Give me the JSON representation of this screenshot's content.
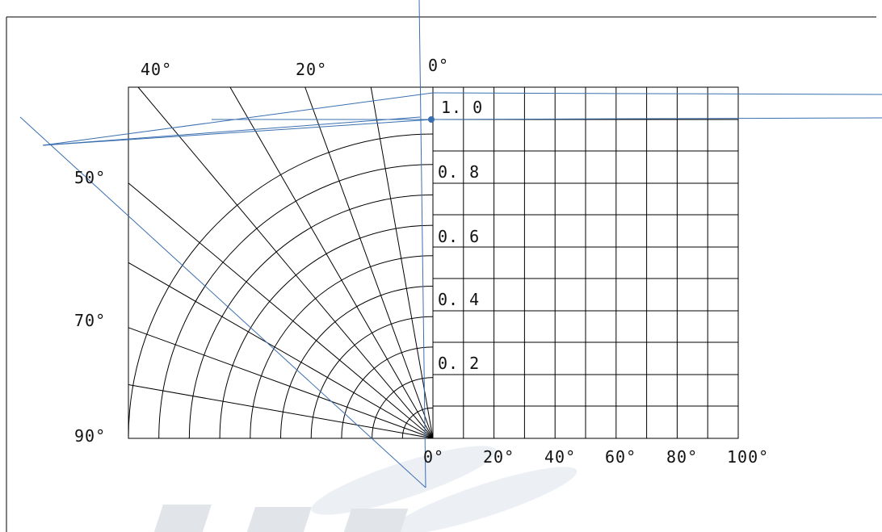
{
  "colors": {
    "ink": "#000000",
    "overlay": "#3a6fb0",
    "watermark": "#d7dbe6"
  },
  "left_angle_labels": [
    "40°",
    "20°",
    "0°",
    "50°",
    "70°",
    "90°"
  ],
  "radius_labels": [
    "1. 0",
    "0. 8",
    "0. 6",
    "0. 4",
    "0. 2"
  ],
  "bottom_labels": [
    "0°",
    "20°",
    "40°",
    "60°",
    "80°",
    "100°"
  ]
}
